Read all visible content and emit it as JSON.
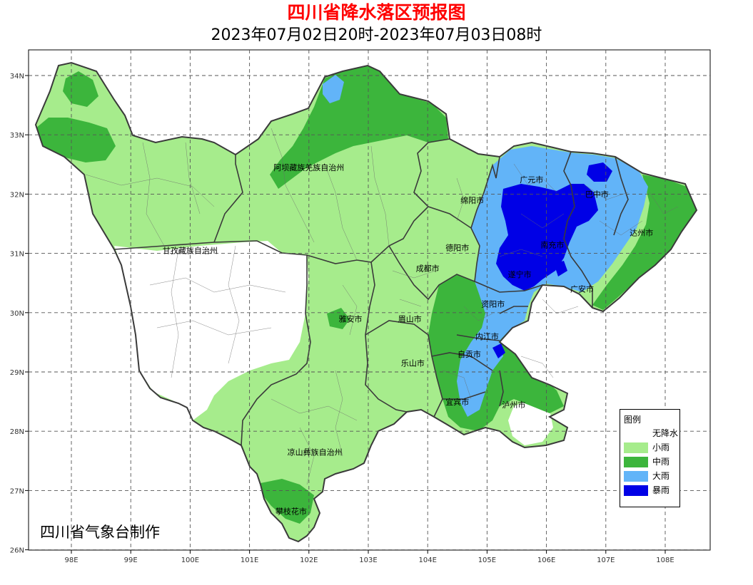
{
  "title": "四川省降水落区预报图",
  "subtitle": "2023年07月02日20时-2023年07月03日08时",
  "credit": "四川省气象台制作",
  "colors": {
    "title": "#ff0000",
    "no_rain": "#ffffff",
    "light_rain": "#a6ec8c",
    "moderate_rain": "#3cb53c",
    "heavy_rain": "#62b4f8",
    "rainstorm": "#0000e6",
    "grid": "#555555",
    "boundary": "#3a3a3a"
  },
  "axes": {
    "x_ticks": [
      "98E",
      "99E",
      "100E",
      "101E",
      "102E",
      "103E",
      "104E",
      "105E",
      "106E",
      "107E",
      "108E"
    ],
    "y_ticks": [
      "34N",
      "33N",
      "32N",
      "31N",
      "30N",
      "29N",
      "28N",
      "27N",
      "26N"
    ],
    "lon_range": [
      97.3,
      108.75
    ],
    "lat_range": [
      26,
      34.85
    ],
    "grid": "dashed"
  },
  "legend": {
    "title": "图例",
    "items": [
      {
        "label": "无降水",
        "color": "#ffffff"
      },
      {
        "label": "小雨",
        "color": "#a6ec8c"
      },
      {
        "label": "中雨",
        "color": "#3cb53c"
      },
      {
        "label": "大雨",
        "color": "#62b4f8"
      },
      {
        "label": "暴雨",
        "color": "#0000e6"
      }
    ]
  },
  "map_labels": [
    {
      "text": "阿坝藏族羌族自治州",
      "lon": 102.0,
      "lat": 32.4
    },
    {
      "text": "甘孜藏族自治州",
      "lon": 100.0,
      "lat": 31.0
    },
    {
      "text": "绵阳市",
      "lon": 104.75,
      "lat": 31.85
    },
    {
      "text": "德阳市",
      "lon": 104.5,
      "lat": 31.05
    },
    {
      "text": "成都市",
      "lon": 104.0,
      "lat": 30.7
    },
    {
      "text": "广元市",
      "lon": 105.75,
      "lat": 32.2
    },
    {
      "text": "巴中市",
      "lon": 106.85,
      "lat": 31.95
    },
    {
      "text": "达州市",
      "lon": 107.6,
      "lat": 31.3
    },
    {
      "text": "南充市",
      "lon": 106.1,
      "lat": 31.1
    },
    {
      "text": "遂宁市",
      "lon": 105.55,
      "lat": 30.6
    },
    {
      "text": "广安市",
      "lon": 106.6,
      "lat": 30.35
    },
    {
      "text": "资阳市",
      "lon": 105.1,
      "lat": 30.1
    },
    {
      "text": "雅安市",
      "lon": 102.7,
      "lat": 29.85
    },
    {
      "text": "眉山市",
      "lon": 103.7,
      "lat": 29.85
    },
    {
      "text": "内江市",
      "lon": 105.0,
      "lat": 29.55
    },
    {
      "text": "自贡市",
      "lon": 104.7,
      "lat": 29.25
    },
    {
      "text": "乐山市",
      "lon": 103.75,
      "lat": 29.1
    },
    {
      "text": "宜宾市",
      "lon": 104.5,
      "lat": 28.45
    },
    {
      "text": "泸州市",
      "lon": 105.45,
      "lat": 28.4
    },
    {
      "text": "凉山彝族自治州",
      "lon": 102.1,
      "lat": 27.6
    },
    {
      "text": "攀枝花市",
      "lon": 101.7,
      "lat": 26.6
    }
  ]
}
